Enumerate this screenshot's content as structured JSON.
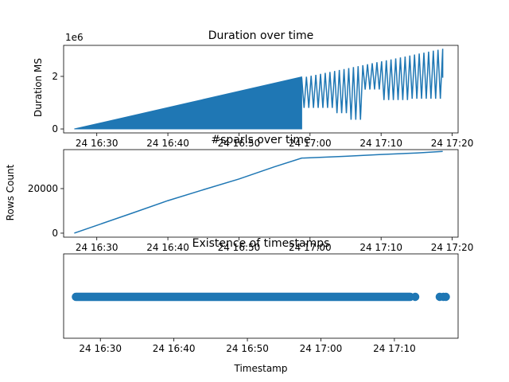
{
  "chart_data": [
    {
      "type": "line",
      "title": "Duration over time",
      "xlabel": "",
      "ylabel": "Duration MS",
      "offset_text": "1e6",
      "x_ticks": [
        "24 16:30",
        "24 16:40",
        "24 16:50",
        "24 17:00",
        "24 17:10",
        "24 17:20"
      ],
      "y_ticks": [
        0,
        2
      ],
      "xlim": [
        "16:25:20",
        "17:20:50"
      ],
      "ylim": [
        -0.15,
        3.18
      ],
      "y_unit_scale": "1e6",
      "series": [
        {
          "color": "#1f77b4",
          "segments": [
            {
              "x_start": "16:26:50",
              "x_end": "16:58:50",
              "low": 0.0,
              "high_start": 0.0,
              "high_end": 1.98,
              "oscillating": true
            },
            {
              "x_start": "16:58:50",
              "x_end": "17:18:40",
              "low_values": [
                0.8,
                0.8,
                0.6,
                0.35,
                1.5,
                1.1,
                1.1,
                1.15,
                1.15
              ],
              "high_start": 1.95,
              "high_end": 3.05,
              "oscillating": true
            }
          ],
          "last_value": 1.95
        }
      ]
    },
    {
      "type": "line",
      "title": "#sparls over time",
      "xlabel": "",
      "ylabel": "Rows Count",
      "x_ticks": [
        "24 16:30",
        "24 16:40",
        "24 16:50",
        "24 17:00",
        "24 17:10",
        "24 17:20"
      ],
      "y_ticks": [
        "0",
        "20000"
      ],
      "xlim": [
        "16:25:20",
        "17:20:50"
      ],
      "ylim": [
        -1800,
        37500
      ],
      "series": [
        {
          "color": "#1f77b4",
          "x": [
            "16:26:50",
            "16:30:00",
            "16:35:00",
            "16:40:00",
            "16:45:00",
            "16:50:00",
            "16:55:00",
            "16:58:50",
            "17:05:00",
            "17:10:00",
            "17:15:00",
            "17:18:40"
          ],
          "y": [
            0,
            3500,
            9000,
            14600,
            19500,
            24300,
            29800,
            33700,
            34500,
            35300,
            36000,
            36700
          ]
        }
      ]
    },
    {
      "type": "scatter",
      "title": "Existence of timestamps",
      "xlabel": "Timestamp",
      "ylabel": "",
      "x_ticks": [
        "24 16:30",
        "24 16:40",
        "24 16:50",
        "24 17:00",
        "24 17:10"
      ],
      "xlim": [
        "16:25:00",
        "17:18:40"
      ],
      "series": [
        {
          "color": "#1f77b4",
          "continuous_ranges": [
            [
              "16:26:40",
              "17:12:10"
            ]
          ],
          "points": [
            "17:12:50",
            "17:16:10",
            "17:16:40",
            "17:17:00"
          ]
        }
      ]
    }
  ]
}
